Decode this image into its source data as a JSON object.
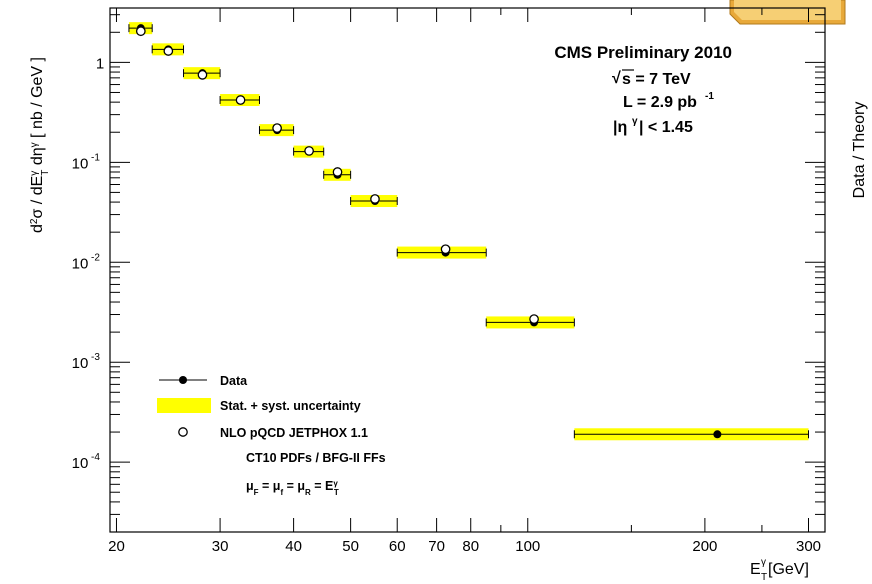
{
  "chart_data": {
    "type": "scatter",
    "title": "",
    "log_x": true,
    "log_y": true,
    "xlim": [
      19.5,
      320
    ],
    "ylim": [
      2e-05,
      3.5
    ],
    "x_ticks": [
      "20",
      "30",
      "40",
      "50",
      "60",
      "70",
      "80",
      "100",
      "200",
      "300"
    ],
    "x_tick_values": [
      20,
      30,
      40,
      50,
      60,
      70,
      80,
      100,
      200,
      300
    ],
    "y_ticks": [
      "1",
      "10",
      "10",
      "10",
      "10"
    ],
    "y_tick_exponents": [
      "",
      "-1",
      "-2",
      "-3",
      "-4"
    ],
    "y_tick_values": [
      1,
      0.1,
      0.01,
      0.001,
      0.0001
    ],
    "xlabel": {
      "base": "E",
      "sup": "γ",
      "sub": "T",
      "unit": " [GeV]"
    },
    "ylabel": "d²σ / dE_T^γ dη^γ [ nb / GeV ]",
    "right_axis_title": "Data / Theory",
    "annotations": {
      "title": "CMS Preliminary 2010",
      "energy": {
        "prefix": "√",
        "text": "s = 7 TeV"
      },
      "lumi": {
        "text": "L = 2.9 pb",
        "sup": "-1"
      },
      "eta": {
        "text": "|η",
        "sup": "γ",
        "tail": "| < 1.45"
      }
    },
    "legend_position": "bottom-left",
    "legend": {
      "data": "Data",
      "band": "Stat. + syst. uncertainty",
      "theory": "NLO pQCD JETPHOX 1.1",
      "pdf": "CT10 PDFs / BFG-II FFs",
      "scale": "μ_F = μ_f = μ_R = E_T^γ"
    },
    "colors": {
      "band": "#ffff00",
      "data": "#000000",
      "theory_fill": "#ffffff"
    },
    "series": [
      {
        "name": "Data",
        "points": [
          {
            "x_low": 21,
            "x_high": 23,
            "x": 22,
            "y": 2.2
          },
          {
            "x_low": 23,
            "x_high": 26,
            "x": 24.5,
            "y": 1.35
          },
          {
            "x_low": 26,
            "x_high": 30,
            "x": 28,
            "y": 0.78
          },
          {
            "x_low": 30,
            "x_high": 35,
            "x": 32.5,
            "y": 0.42
          },
          {
            "x_low": 35,
            "x_high": 40,
            "x": 37.5,
            "y": 0.21
          },
          {
            "x_low": 40,
            "x_high": 45,
            "x": 42.5,
            "y": 0.128
          },
          {
            "x_low": 45,
            "x_high": 50,
            "x": 47.5,
            "y": 0.075
          },
          {
            "x_low": 50,
            "x_high": 60,
            "x": 55,
            "y": 0.041
          },
          {
            "x_low": 60,
            "x_high": 85,
            "x": 72.5,
            "y": 0.0125
          },
          {
            "x_low": 85,
            "x_high": 120,
            "x": 102.5,
            "y": 0.0025
          },
          {
            "x_low": 120,
            "x_high": 300,
            "x": 210,
            "y": 0.00019
          }
        ]
      },
      {
        "name": "NLO pQCD JETPHOX 1.1",
        "points": [
          {
            "x": 22,
            "y": 2.05
          },
          {
            "x": 24.5,
            "y": 1.3
          },
          {
            "x": 28,
            "y": 0.75
          },
          {
            "x": 32.5,
            "y": 0.42
          },
          {
            "x": 37.5,
            "y": 0.22
          },
          {
            "x": 42.5,
            "y": 0.13
          },
          {
            "x": 47.5,
            "y": 0.08
          },
          {
            "x": 55,
            "y": 0.043
          },
          {
            "x": 72.5,
            "y": 0.0135
          },
          {
            "x": 102.5,
            "y": 0.0027
          }
        ]
      }
    ]
  }
}
